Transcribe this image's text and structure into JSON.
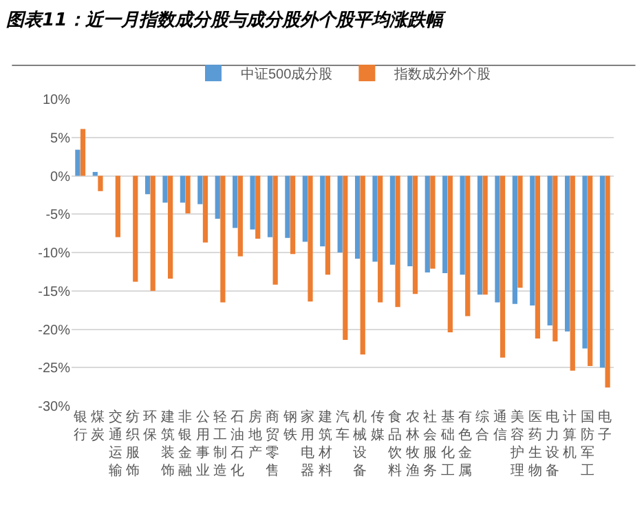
{
  "chart_data": {
    "type": "bar",
    "title": "图表11：近一月指数成分股与成分股外个股平均涨跌幅",
    "categories": [
      "银行",
      "煤炭",
      "交通运输",
      "纺织服饰",
      "环保",
      "建筑装饰",
      "非银金融",
      "公用事业",
      "轻工制造",
      "石油石化",
      "房地产",
      "商贸零售",
      "钢铁",
      "家用电器",
      "建筑材料",
      "汽车",
      "机械设备",
      "传媒",
      "食品饮料",
      "农林牧渔",
      "社会服务",
      "基础化工",
      "有色金属",
      "综合",
      "通信",
      "美容护理",
      "医药生物",
      "电力设备",
      "计算机",
      "国防军工",
      "电子"
    ],
    "series": [
      {
        "name": "中证500成分股",
        "color": "#5b9bd5",
        "values": [
          3.4,
          0.5,
          null,
          null,
          -2.4,
          -3.5,
          -3.5,
          -3.7,
          -5.6,
          -6.8,
          -7.0,
          -8.0,
          -8.1,
          -8.6,
          -9.2,
          -10.0,
          -10.8,
          -11.2,
          -11.6,
          -11.8,
          -12.6,
          -12.7,
          -12.9,
          -15.5,
          -16.5,
          -16.7,
          -16.9,
          -19.5,
          -20.3,
          -22.5,
          -25.0
        ]
      },
      {
        "name": "指数成分外个股",
        "color": "#ed7d31",
        "values": [
          6.1,
          -2.0,
          -8.0,
          -13.8,
          -15.0,
          -13.4,
          -4.9,
          -8.7,
          -16.5,
          -10.5,
          -8.2,
          -14.2,
          -10.2,
          -16.4,
          -12.9,
          -21.4,
          -23.3,
          -16.5,
          -17.1,
          -15.4,
          -12.1,
          -20.4,
          -18.3,
          -15.5,
          -23.7,
          -14.6,
          -21.2,
          -21.6,
          -25.4,
          -24.8,
          -27.6
        ]
      }
    ],
    "ylim": [
      -30,
      10
    ],
    "yticks": [
      {
        "value": 10,
        "label": "10%"
      },
      {
        "value": 5,
        "label": "5%"
      },
      {
        "value": 0,
        "label": "0%"
      },
      {
        "value": -5,
        "label": "-5%"
      },
      {
        "value": -10,
        "label": "-10%"
      },
      {
        "value": -15,
        "label": "-15%"
      },
      {
        "value": -20,
        "label": "-20%"
      },
      {
        "value": -25,
        "label": "-25%"
      },
      {
        "value": -30,
        "label": "-30%"
      }
    ],
    "grid": "y",
    "legend": "top"
  }
}
